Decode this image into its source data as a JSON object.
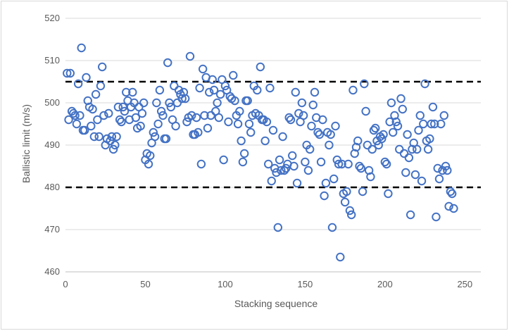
{
  "chart_data": {
    "type": "scatter",
    "title": "",
    "xlabel": "Stacking sequence",
    "ylabel": "Ballistic limit (m/s)",
    "xlim": [
      0,
      260
    ],
    "ylim": [
      460,
      520
    ],
    "x_ticks": [
      0,
      50,
      100,
      150,
      200,
      250
    ],
    "y_ticks": [
      460,
      470,
      480,
      490,
      500,
      510,
      520
    ],
    "grid": "horizontal",
    "legend": "none",
    "marker_color": "#4472c4",
    "reference_lines": [
      {
        "y": 505,
        "style": "dashed",
        "color": "#000000"
      },
      {
        "y": 480,
        "style": "dashed",
        "color": "#000000"
      }
    ],
    "points": [
      [
        1,
        507
      ],
      [
        3,
        507
      ],
      [
        2,
        496
      ],
      [
        4,
        498
      ],
      [
        5,
        497.5
      ],
      [
        6,
        497
      ],
      [
        7,
        495
      ],
      [
        8,
        504.5
      ],
      [
        9,
        497
      ],
      [
        10,
        513
      ],
      [
        11,
        493.5
      ],
      [
        12,
        493.5
      ],
      [
        13,
        506
      ],
      [
        14,
        500.5
      ],
      [
        15,
        499
      ],
      [
        16,
        494.5
      ],
      [
        17,
        498.5
      ],
      [
        18,
        492
      ],
      [
        19,
        502
      ],
      [
        20,
        496
      ],
      [
        21,
        492
      ],
      [
        22,
        504
      ],
      [
        23,
        508.5
      ],
      [
        24,
        497
      ],
      [
        25,
        490
      ],
      [
        26,
        491.5
      ],
      [
        27,
        497.5
      ],
      [
        28,
        491
      ],
      [
        29,
        492
      ],
      [
        30,
        489
      ],
      [
        31,
        490
      ],
      [
        32,
        492
      ],
      [
        33,
        499
      ],
      [
        34,
        496
      ],
      [
        35,
        495.5
      ],
      [
        36,
        499
      ],
      [
        37,
        498
      ],
      [
        38,
        502.5
      ],
      [
        39,
        500.5
      ],
      [
        40,
        496
      ],
      [
        41,
        499
      ],
      [
        42,
        502.5
      ],
      [
        43,
        500
      ],
      [
        44,
        496.5
      ],
      [
        45,
        494
      ],
      [
        46,
        499
      ],
      [
        47,
        494.5
      ],
      [
        48,
        497.5
      ],
      [
        49,
        500
      ],
      [
        50,
        486.5
      ],
      [
        51,
        488
      ],
      [
        52,
        485.5
      ],
      [
        53,
        487.5
      ],
      [
        54,
        490.5
      ],
      [
        55,
        493
      ],
      [
        56,
        492
      ],
      [
        57,
        500
      ],
      [
        58,
        495
      ],
      [
        59,
        503
      ],
      [
        60,
        498
      ],
      [
        61,
        497
      ],
      [
        62,
        491.5
      ],
      [
        63,
        491.5
      ],
      [
        64,
        509.5
      ],
      [
        65,
        500
      ],
      [
        66,
        499
      ],
      [
        67,
        496
      ],
      [
        68,
        504
      ],
      [
        69,
        494.5
      ],
      [
        70,
        500
      ],
      [
        71,
        503
      ],
      [
        72,
        502
      ],
      [
        73,
        501
      ],
      [
        74,
        502.5
      ],
      [
        75,
        501
      ],
      [
        76,
        495.5
      ],
      [
        77,
        496.5
      ],
      [
        78,
        511
      ],
      [
        79,
        497
      ],
      [
        80,
        492.5
      ],
      [
        81,
        492.5
      ],
      [
        82,
        496.5
      ],
      [
        83,
        493
      ],
      [
        84,
        503.5
      ],
      [
        85,
        485.5
      ],
      [
        86,
        508
      ],
      [
        87,
        497
      ],
      [
        88,
        506
      ],
      [
        89,
        494
      ],
      [
        90,
        502.5
      ],
      [
        91,
        497
      ],
      [
        92,
        505.5
      ],
      [
        93,
        503
      ],
      [
        94,
        498
      ],
      [
        95,
        500
      ],
      [
        96,
        496.5
      ],
      [
        97,
        502
      ],
      [
        98,
        505.5
      ],
      [
        99,
        486.5
      ],
      [
        100,
        504
      ],
      [
        101,
        503
      ],
      [
        102,
        495.5
      ],
      [
        103,
        501.5
      ],
      [
        104,
        501
      ],
      [
        105,
        506.5
      ],
      [
        106,
        500.5
      ],
      [
        107,
        497
      ],
      [
        108,
        495
      ],
      [
        109,
        498
      ],
      [
        110,
        491
      ],
      [
        111,
        486
      ],
      [
        112,
        488
      ],
      [
        113,
        500.5
      ],
      [
        114,
        500.5
      ],
      [
        115,
        495
      ],
      [
        116,
        493
      ],
      [
        117,
        497
      ],
      [
        118,
        504
      ],
      [
        119,
        497.5
      ],
      [
        120,
        503
      ],
      [
        121,
        497
      ],
      [
        122,
        508.5
      ],
      [
        123,
        496
      ],
      [
        124,
        496
      ],
      [
        125,
        491
      ],
      [
        126,
        495.5
      ],
      [
        127,
        485.5
      ],
      [
        128,
        503.5
      ],
      [
        129,
        481.5
      ],
      [
        130,
        493.5
      ],
      [
        131,
        484.5
      ],
      [
        132,
        483.5
      ],
      [
        133,
        470.5
      ],
      [
        134,
        486.5
      ],
      [
        135,
        484
      ],
      [
        136,
        492
      ],
      [
        137,
        484
      ],
      [
        138,
        484.5
      ],
      [
        139,
        485.5
      ],
      [
        140,
        496.5
      ],
      [
        141,
        496
      ],
      [
        142,
        487.5
      ],
      [
        143,
        485
      ],
      [
        144,
        502.5
      ],
      [
        145,
        481
      ],
      [
        146,
        497.5
      ],
      [
        147,
        495.5
      ],
      [
        148,
        500
      ],
      [
        149,
        497
      ],
      [
        150,
        486
      ],
      [
        151,
        490
      ],
      [
        152,
        484
      ],
      [
        153,
        489
      ],
      [
        154,
        494.5
      ],
      [
        155,
        499.5
      ],
      [
        156,
        502.5
      ],
      [
        157,
        496.5
      ],
      [
        158,
        493
      ],
      [
        159,
        492.5
      ],
      [
        160,
        486
      ],
      [
        161,
        496
      ],
      [
        162,
        478
      ],
      [
        163,
        481
      ],
      [
        164,
        493
      ],
      [
        165,
        490
      ],
      [
        166,
        492.5
      ],
      [
        167,
        470.5
      ],
      [
        168,
        482
      ],
      [
        169,
        494.5
      ],
      [
        170,
        486.5
      ],
      [
        171,
        485.5
      ],
      [
        172,
        463.5
      ],
      [
        173,
        485.5
      ],
      [
        174,
        478.5
      ],
      [
        175,
        476.5
      ],
      [
        176,
        479
      ],
      [
        177,
        485.5
      ],
      [
        178,
        474.5
      ],
      [
        179,
        473.5
      ],
      [
        180,
        503
      ],
      [
        181,
        488
      ],
      [
        182,
        489.5
      ],
      [
        183,
        491
      ],
      [
        184,
        485
      ],
      [
        185,
        484.5
      ],
      [
        186,
        479
      ],
      [
        187,
        504.5
      ],
      [
        188,
        498
      ],
      [
        189,
        490
      ],
      [
        190,
        484
      ],
      [
        191,
        482.5
      ],
      [
        192,
        489
      ],
      [
        193,
        493.5
      ],
      [
        194,
        494
      ],
      [
        195,
        491
      ],
      [
        196,
        490
      ],
      [
        197,
        492
      ],
      [
        198,
        491.5
      ],
      [
        199,
        492.5
      ],
      [
        200,
        486
      ],
      [
        201,
        485.5
      ],
      [
        202,
        478.5
      ],
      [
        203,
        495.5
      ],
      [
        204,
        500
      ],
      [
        205,
        493
      ],
      [
        206,
        497
      ],
      [
        207,
        495.5
      ],
      [
        208,
        494.5
      ],
      [
        209,
        489
      ],
      [
        210,
        501
      ],
      [
        211,
        498.5
      ],
      [
        212,
        488
      ],
      [
        213,
        483.5
      ],
      [
        214,
        492.5
      ],
      [
        215,
        487
      ],
      [
        216,
        473.5
      ],
      [
        217,
        489
      ],
      [
        218,
        490.5
      ],
      [
        219,
        483
      ],
      [
        220,
        489
      ],
      [
        221,
        493.5
      ],
      [
        222,
        497
      ],
      [
        223,
        481.5
      ],
      [
        224,
        495
      ],
      [
        225,
        504.5
      ],
      [
        226,
        491
      ],
      [
        227,
        489
      ],
      [
        228,
        491.5
      ],
      [
        229,
        495
      ],
      [
        230,
        499
      ],
      [
        231,
        495
      ],
      [
        232,
        473
      ],
      [
        233,
        484.5
      ],
      [
        234,
        482
      ],
      [
        235,
        495
      ],
      [
        236,
        484
      ],
      [
        237,
        497
      ],
      [
        238,
        485
      ],
      [
        239,
        484
      ],
      [
        240,
        475.5
      ],
      [
        241,
        479
      ],
      [
        242,
        478.5
      ],
      [
        243,
        475
      ]
    ]
  }
}
